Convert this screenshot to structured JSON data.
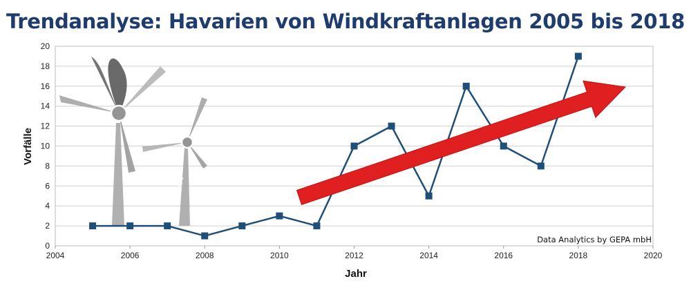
{
  "chart_data": {
    "type": "line",
    "title": "Trendanalyse: Havarien von Windkraftanlagen 2005 bis 2018",
    "xlabel": "Jahr",
    "ylabel": "Vorfälle",
    "xlim": [
      2004,
      2020
    ],
    "ylim": [
      0,
      20
    ],
    "xticks": [
      2004,
      2006,
      2008,
      2010,
      2012,
      2014,
      2016,
      2018,
      2020
    ],
    "yticks": [
      0,
      2,
      4,
      6,
      8,
      10,
      12,
      14,
      16,
      18,
      20
    ],
    "grid": "horizontal",
    "x": [
      2005,
      2006,
      2007,
      2008,
      2009,
      2010,
      2011,
      2012,
      2013,
      2014,
      2015,
      2016,
      2017,
      2018
    ],
    "values": [
      2,
      2,
      2,
      1,
      2,
      3,
      2,
      10,
      12,
      5,
      16,
      10,
      8,
      19
    ],
    "line_color": "#1f4e79",
    "marker_color": "#1f4e79",
    "trend_arrow_color": "#e02020",
    "annotation": "Data Analytics by GEPA mbH"
  },
  "icons": [
    "wind-turbine-burning-icon",
    "wind-turbine-broken-icon",
    "flame-icon"
  ]
}
